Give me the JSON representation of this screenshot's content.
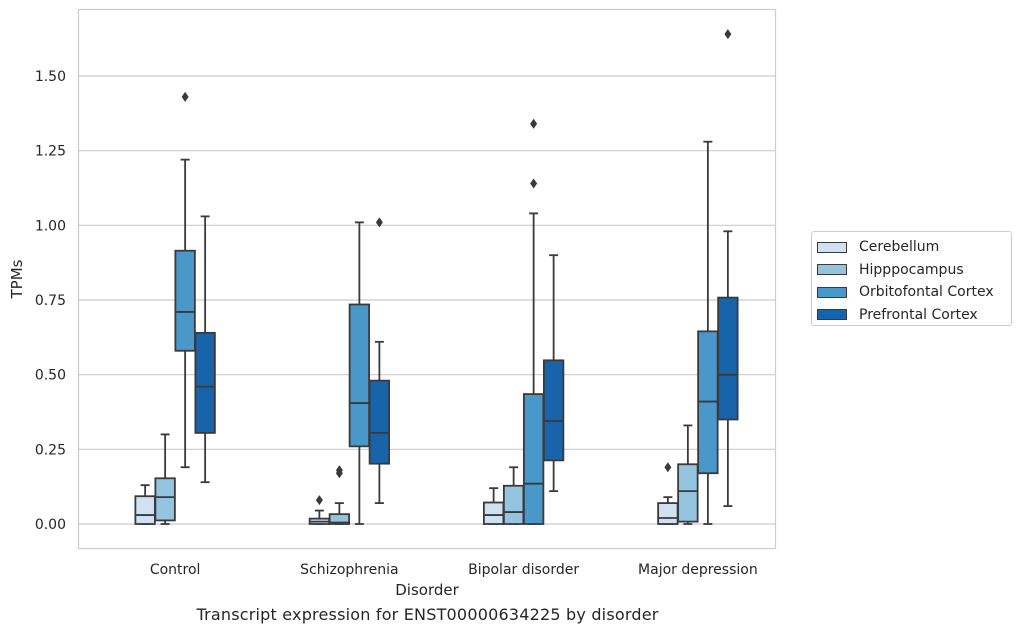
{
  "chart_data": {
    "type": "box",
    "xlabel": "Disorder",
    "ylabel": "TPMs",
    "caption": "Transcript expression for ENST00000634225 by disorder",
    "categories": [
      "Control",
      "Schizophrenia",
      "Bipolar disorder",
      "Major depression"
    ],
    "ylim": [
      -0.08,
      1.72
    ],
    "yticks": [
      0.0,
      0.25,
      0.5,
      0.75,
      1.0,
      1.25,
      1.5
    ],
    "ytick_labels": [
      "0.00",
      "0.25",
      "0.50",
      "0.75",
      "1.00",
      "1.25",
      "1.50"
    ],
    "grid": true,
    "legend_position": "right",
    "series": [
      {
        "name": "Cerebellum",
        "color": "#d0e1f2",
        "boxes": [
          {
            "whislo": 0.0,
            "q1": 0.0,
            "med": 0.03,
            "q3": 0.093,
            "whishi": 0.13,
            "fliers": []
          },
          {
            "whislo": 0.0,
            "q1": 0.0,
            "med": 0.008,
            "q3": 0.018,
            "whishi": 0.045,
            "fliers": [
              0.08
            ]
          },
          {
            "whislo": 0.0,
            "q1": 0.0,
            "med": 0.03,
            "q3": 0.072,
            "whishi": 0.12,
            "fliers": []
          },
          {
            "whislo": 0.0,
            "q1": 0.0,
            "med": 0.02,
            "q3": 0.07,
            "whishi": 0.09,
            "fliers": [
              0.19
            ]
          }
        ]
      },
      {
        "name": "Hipppocampus",
        "color": "#94c4df",
        "boxes": [
          {
            "whislo": 0.0,
            "q1": 0.012,
            "med": 0.09,
            "q3": 0.153,
            "whishi": 0.3,
            "fliers": []
          },
          {
            "whislo": 0.0,
            "q1": 0.0,
            "med": 0.005,
            "q3": 0.033,
            "whishi": 0.07,
            "fliers": [
              0.17,
              0.18
            ]
          },
          {
            "whislo": 0.0,
            "q1": 0.0,
            "med": 0.04,
            "q3": 0.128,
            "whishi": 0.19,
            "fliers": []
          },
          {
            "whislo": 0.0,
            "q1": 0.008,
            "med": 0.11,
            "q3": 0.2,
            "whishi": 0.33,
            "fliers": []
          }
        ]
      },
      {
        "name": "Orbitofontal Cortex",
        "color": "#4a98c9",
        "boxes": [
          {
            "whislo": 0.19,
            "q1": 0.58,
            "med": 0.71,
            "q3": 0.915,
            "whishi": 1.22,
            "fliers": [
              1.43
            ]
          },
          {
            "whislo": 0.0,
            "q1": 0.26,
            "med": 0.405,
            "q3": 0.735,
            "whishi": 1.01,
            "fliers": []
          },
          {
            "whislo": 0.0,
            "q1": 0.0,
            "med": 0.135,
            "q3": 0.435,
            "whishi": 1.04,
            "fliers": [
              1.14,
              1.34
            ]
          },
          {
            "whislo": 0.0,
            "q1": 0.17,
            "med": 0.41,
            "q3": 0.645,
            "whishi": 1.28,
            "fliers": []
          }
        ]
      },
      {
        "name": "Prefrontal Cortex",
        "color": "#1764ab",
        "boxes": [
          {
            "whislo": 0.14,
            "q1": 0.305,
            "med": 0.46,
            "q3": 0.64,
            "whishi": 1.03,
            "fliers": []
          },
          {
            "whislo": 0.07,
            "q1": 0.202,
            "med": 0.305,
            "q3": 0.48,
            "whishi": 0.61,
            "fliers": [
              1.01
            ]
          },
          {
            "whislo": 0.11,
            "q1": 0.213,
            "med": 0.345,
            "q3": 0.548,
            "whishi": 0.9,
            "fliers": []
          },
          {
            "whislo": 0.06,
            "q1": 0.35,
            "med": 0.5,
            "q3": 0.758,
            "whishi": 0.98,
            "fliers": [
              1.64
            ]
          }
        ]
      }
    ]
  }
}
